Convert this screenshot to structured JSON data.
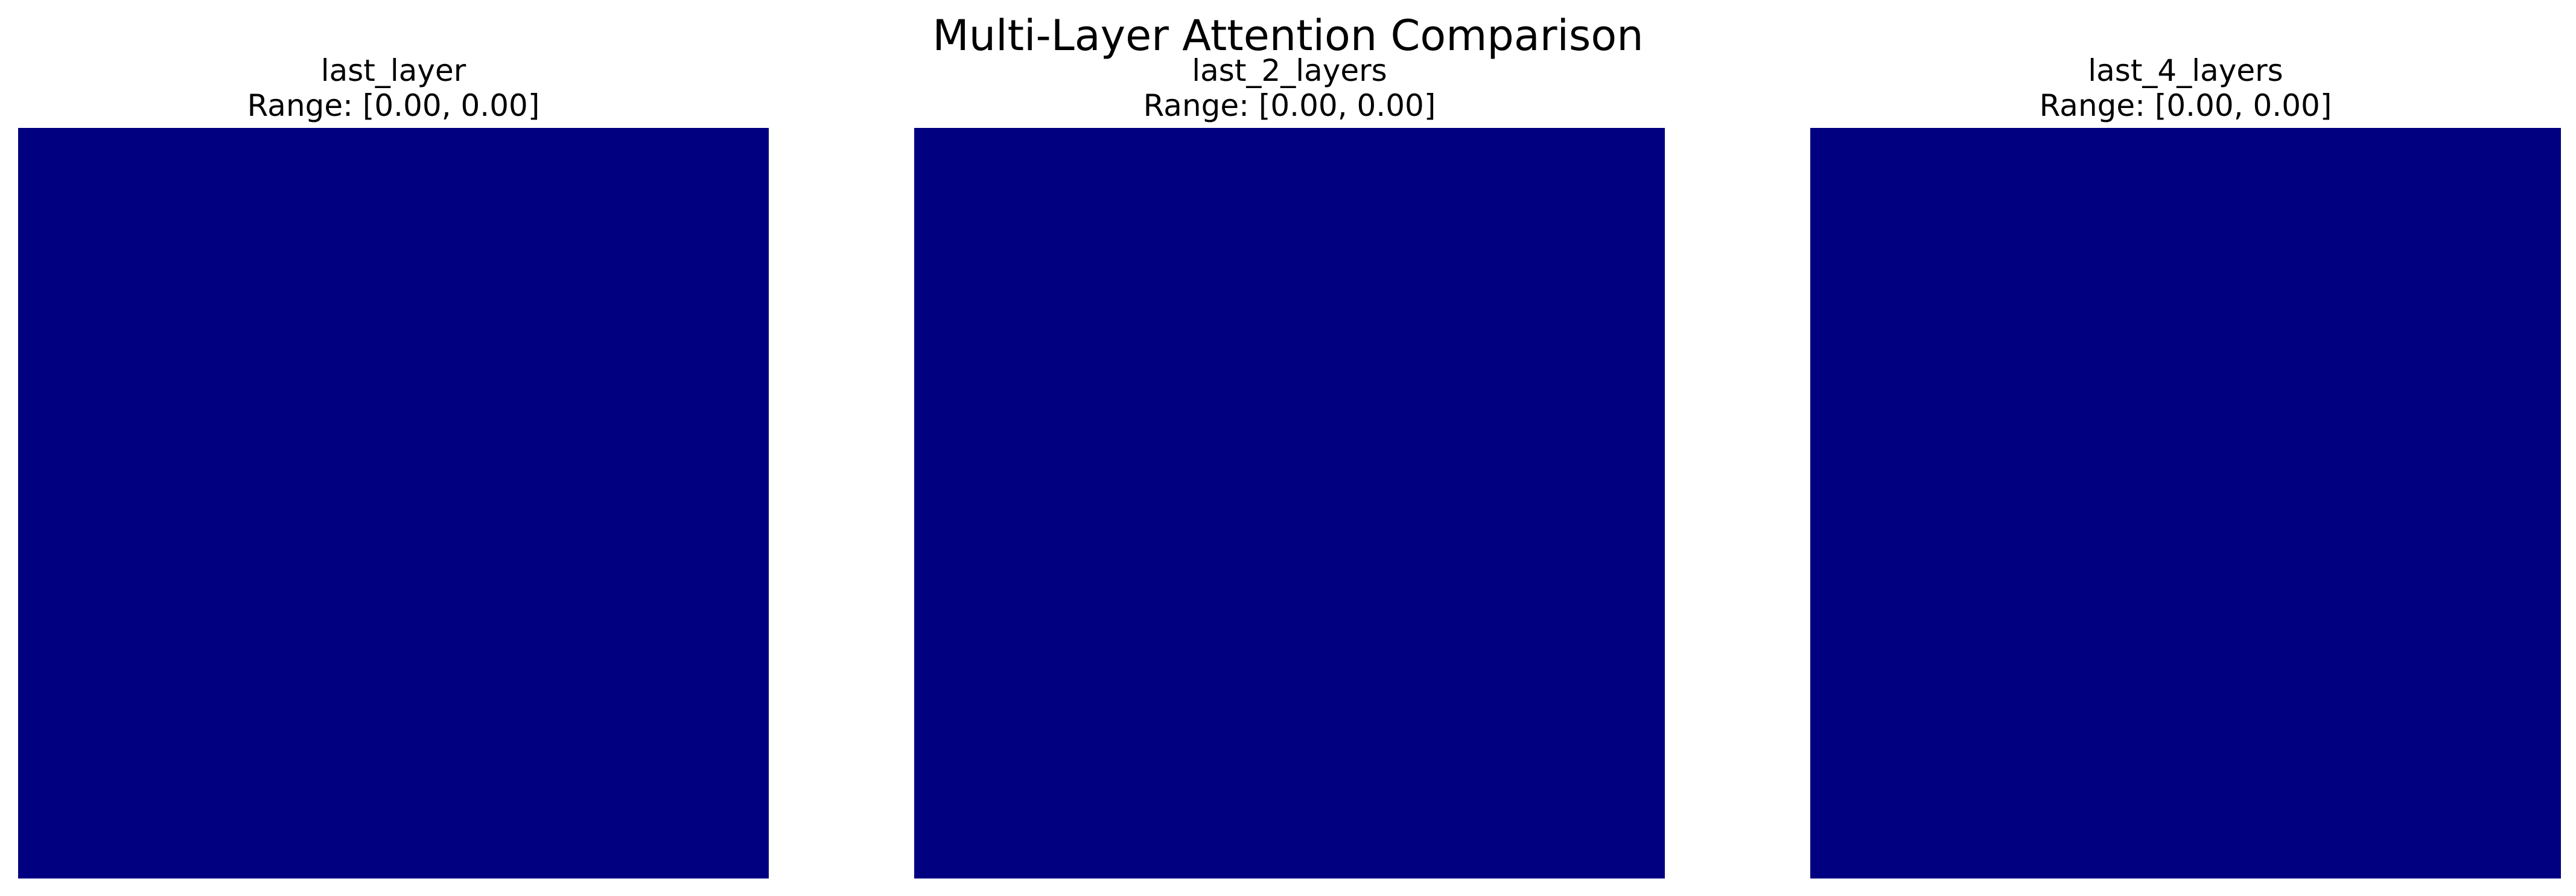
{
  "title": "Multi-Layer Attention Comparison",
  "chart_data": [
    {
      "type": "heatmap",
      "title": "last_layer",
      "subtitle": "Range: [0.00, 0.00]",
      "range": [
        0.0,
        0.0
      ],
      "values": [
        [
          0.0
        ]
      ],
      "colormap": "jet",
      "fill_color": "#000080",
      "axes_visible": false
    },
    {
      "type": "heatmap",
      "title": "last_2_layers",
      "subtitle": "Range: [0.00, 0.00]",
      "range": [
        0.0,
        0.0
      ],
      "values": [
        [
          0.0
        ]
      ],
      "colormap": "jet",
      "fill_color": "#000080",
      "axes_visible": false
    },
    {
      "type": "heatmap",
      "title": "last_4_layers",
      "subtitle": "Range: [0.00, 0.00]",
      "range": [
        0.0,
        0.0
      ],
      "values": [
        [
          0.0
        ]
      ],
      "colormap": "jet",
      "fill_color": "#000080",
      "axes_visible": false
    }
  ]
}
